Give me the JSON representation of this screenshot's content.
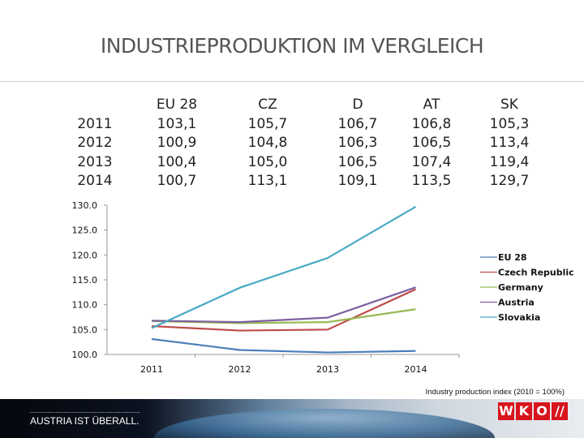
{
  "title": "INDUSTRIEPRODUKTION IM VERGLEICH",
  "table": {
    "years": [
      "2011",
      "2012",
      "2013",
      "2014"
    ],
    "columns": [
      {
        "header": "EU 28",
        "values": [
          "103,1",
          "100,9",
          "100,4",
          "100,7"
        ]
      },
      {
        "header": "CZ",
        "values": [
          "105,7",
          "104,8",
          "105,0",
          "113,1"
        ]
      },
      {
        "header": "D",
        "values": [
          "106,7",
          "106,3",
          "106,5",
          "109,1"
        ]
      },
      {
        "header": "AT",
        "values": [
          "106,8",
          "106,5",
          "107,4",
          "113,5"
        ]
      },
      {
        "header": "SK",
        "values": [
          "105,3",
          "113,4",
          "119,4",
          "129,7"
        ]
      }
    ]
  },
  "chart_data": {
    "type": "line",
    "categories": [
      "2011",
      "2012",
      "2013",
      "2014"
    ],
    "ylim": [
      100,
      130
    ],
    "yticks": [
      "100.0",
      "105.0",
      "110.0",
      "115.0",
      "120.0",
      "125.0",
      "130.0"
    ],
    "legend_position": "right",
    "series": [
      {
        "name": "EU 28",
        "color": "#4a7ebb",
        "values": [
          103.1,
          100.9,
          100.4,
          100.7
        ]
      },
      {
        "name": "Czech Republic",
        "color": "#be4b48",
        "values": [
          105.7,
          104.8,
          105.0,
          113.1
        ]
      },
      {
        "name": "Germany",
        "color": "#98b954",
        "values": [
          106.7,
          106.3,
          106.5,
          109.1
        ]
      },
      {
        "name": "Austria",
        "color": "#7d60a0",
        "values": [
          106.8,
          106.5,
          107.4,
          113.5
        ]
      },
      {
        "name": "Slovakia",
        "color": "#46aac5",
        "values": [
          105.3,
          113.4,
          119.4,
          129.7
        ]
      }
    ]
  },
  "note": "Industry production index (2010 = 100%)",
  "footer": {
    "slogan": "AUSTRIA IST ÜBERALL.",
    "logo": "WKO"
  }
}
